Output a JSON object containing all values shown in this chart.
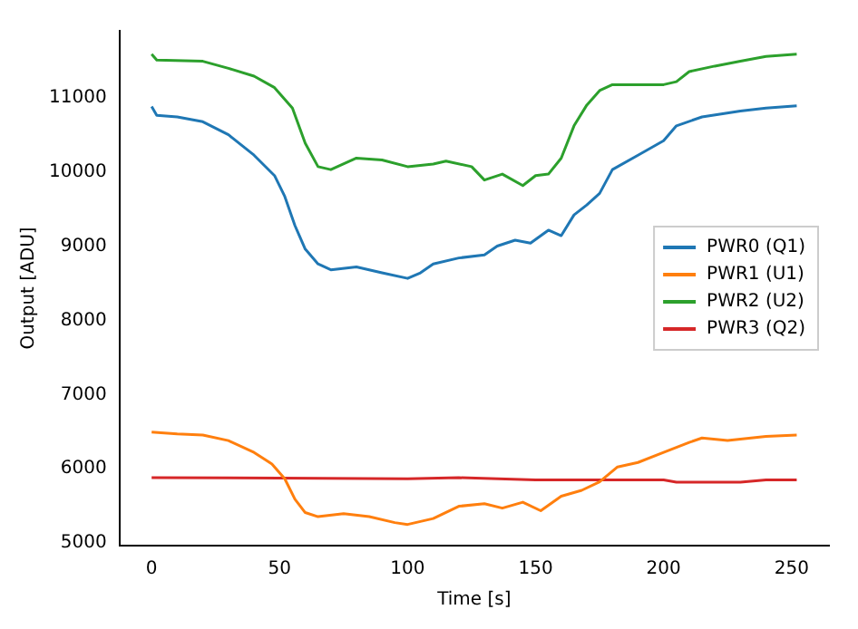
{
  "chart_data": {
    "type": "line",
    "xlabel": "Time [s]",
    "ylabel": "Output [ADU]",
    "xlim": [
      -12.6,
      264.6
    ],
    "ylim": [
      4965,
      11900
    ],
    "xticks": [
      0,
      50,
      100,
      150,
      200,
      250
    ],
    "yticks": [
      5000,
      6000,
      7000,
      8000,
      9000,
      10000,
      11000
    ],
    "grid": false,
    "legend": "right",
    "marker": "none",
    "line_style": "solid",
    "series": [
      {
        "name": "PWR0 (Q1)",
        "color": "#1f77b4",
        "x": [
          0,
          2,
          10,
          20,
          30,
          40,
          48,
          52,
          56,
          60,
          65,
          70,
          80,
          90,
          100,
          105,
          110,
          120,
          130,
          135,
          142,
          148,
          155,
          160,
          165,
          170,
          175,
          180,
          190,
          200,
          205,
          215,
          230,
          240,
          252
        ],
        "values": [
          10880,
          10760,
          10740,
          10675,
          10500,
          10225,
          9950,
          9670,
          9275,
          8960,
          8760,
          8680,
          8720,
          8640,
          8565,
          8640,
          8760,
          8840,
          8880,
          9000,
          9080,
          9040,
          9215,
          9140,
          9420,
          9555,
          9710,
          10030,
          10225,
          10420,
          10620,
          10740,
          10820,
          10860,
          10890
        ]
      },
      {
        "name": "PWR1 (U1)",
        "color": "#ff7f0e",
        "x": [
          0,
          10,
          20,
          30,
          40,
          47,
          52,
          56,
          60,
          65,
          75,
          85,
          95,
          100,
          110,
          120,
          130,
          137,
          145,
          152,
          160,
          168,
          175,
          182,
          190,
          200,
          210,
          215,
          225,
          240,
          252
        ],
        "values": [
          6495,
          6470,
          6455,
          6380,
          6220,
          6065,
          5865,
          5590,
          5410,
          5355,
          5395,
          5355,
          5275,
          5250,
          5330,
          5495,
          5530,
          5470,
          5550,
          5435,
          5630,
          5710,
          5825,
          6025,
          6085,
          6220,
          6355,
          6415,
          6380,
          6435,
          6455
        ]
      },
      {
        "name": "PWR2 (U2)",
        "color": "#2ca02c",
        "x": [
          0,
          2,
          20,
          30,
          40,
          48,
          55,
          60,
          65,
          70,
          80,
          90,
          100,
          110,
          115,
          125,
          130,
          137,
          145,
          150,
          155,
          160,
          165,
          170,
          175,
          180,
          190,
          200,
          205,
          210,
          220,
          230,
          240,
          252
        ],
        "values": [
          11585,
          11505,
          11490,
          11395,
          11290,
          11135,
          10860,
          10385,
          10070,
          10030,
          10185,
          10160,
          10070,
          10105,
          10145,
          10070,
          9890,
          9970,
          9815,
          9950,
          9970,
          10185,
          10620,
          10900,
          11095,
          11175,
          11175,
          11175,
          11215,
          11350,
          11425,
          11490,
          11555,
          11585
        ]
      },
      {
        "name": "PWR3 (Q2)",
        "color": "#d62728",
        "x": [
          0,
          50,
          100,
          120,
          150,
          200,
          205,
          230,
          240,
          252
        ],
        "values": [
          5880,
          5875,
          5865,
          5880,
          5850,
          5850,
          5820,
          5820,
          5850,
          5850
        ]
      }
    ]
  }
}
